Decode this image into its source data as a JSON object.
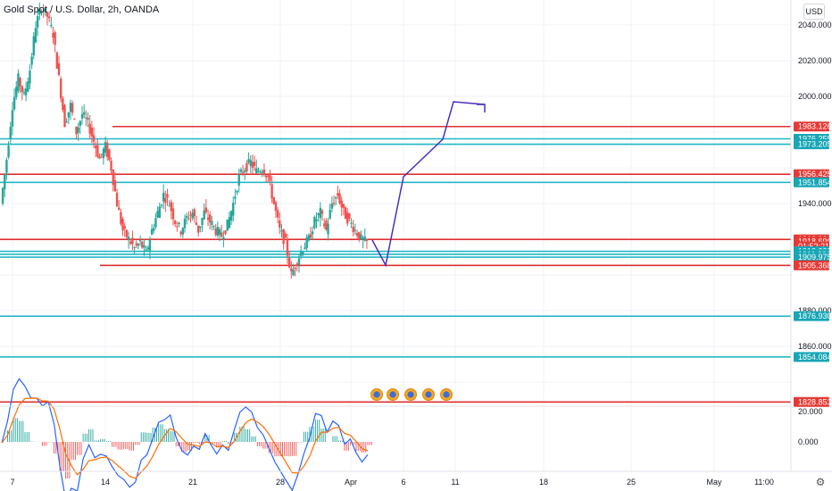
{
  "header": {
    "title": "Gold Spot / U.S. Dollar, 2h, OANDA",
    "currency": "USD"
  },
  "colors": {
    "up": "#26a69a",
    "down": "#ef5350",
    "red_line": "#e03030",
    "cyan_line": "#21b7c6",
    "projection": "#4a2fbf",
    "macd_line": "#2962ff",
    "signal_line": "#ff6d00",
    "price_label_red": "#e53935",
    "price_label_cyan": "#17a6b6"
  },
  "price_axis": {
    "ticks": [
      {
        "label": "2040.000",
        "value": 2040
      },
      {
        "label": "2020.000",
        "value": 2020
      },
      {
        "label": "2000.000",
        "value": 2000
      },
      {
        "label": "1940.000",
        "value": 1940
      },
      {
        "label": "1880.000",
        "value": 1880
      },
      {
        "label": "1860.000",
        "value": 1860
      }
    ],
    "tags": [
      {
        "label": "1983.126",
        "value": 1983.126,
        "color": "red"
      },
      {
        "label": "1976.255",
        "value": 1976.255,
        "color": "cyan"
      },
      {
        "label": "1973.205",
        "value": 1973.205,
        "color": "cyan"
      },
      {
        "label": "1956.425",
        "value": 1956.425,
        "color": "red"
      },
      {
        "label": "1951.854",
        "value": 1951.854,
        "color": "cyan"
      },
      {
        "label": "1919.920",
        "value": 1919.92,
        "color": "red"
      },
      {
        "label": "1918.690",
        "value": 1918.69,
        "color": "red"
      },
      {
        "label": "01:52:21",
        "value": 1916.0,
        "color": "red"
      },
      {
        "label": "1913.238",
        "value": 1913.238,
        "color": "cyan"
      },
      {
        "label": "1911.606",
        "value": 1911.606,
        "color": "cyan"
      },
      {
        "label": "1909.975",
        "value": 1909.975,
        "color": "cyan"
      },
      {
        "label": "1905.368",
        "value": 1905.368,
        "color": "red"
      },
      {
        "label": "1876.930",
        "value": 1876.93,
        "color": "cyan"
      },
      {
        "label": "1854.084",
        "value": 1854.084,
        "color": "cyan"
      },
      {
        "label": "1828.853",
        "value": 1828.853,
        "color": "red"
      }
    ]
  },
  "macd_axis": {
    "ticks": [
      {
        "label": "20.000",
        "value": 20
      },
      {
        "label": "0.000",
        "value": 0
      }
    ]
  },
  "time_axis": {
    "labels": [
      "7",
      "14",
      "21",
      "28",
      "Apr",
      "6",
      "11",
      "18",
      "25",
      "May",
      "11:00"
    ]
  },
  "chart_data": {
    "type": "candlestick",
    "symbol": "Gold Spot / U.S. Dollar",
    "interval": "2h",
    "source": "OANDA",
    "price_range": [
      1820,
      2050
    ],
    "horizontal_levels": [
      {
        "value": 1983.126,
        "color": "red"
      },
      {
        "value": 1976.255,
        "color": "cyan"
      },
      {
        "value": 1973.205,
        "color": "cyan"
      },
      {
        "value": 1956.425,
        "color": "red"
      },
      {
        "value": 1951.854,
        "color": "cyan"
      },
      {
        "value": 1919.92,
        "color": "red"
      },
      {
        "value": 1913.238,
        "color": "cyan"
      },
      {
        "value": 1911.606,
        "color": "cyan"
      },
      {
        "value": 1909.975,
        "color": "cyan"
      },
      {
        "value": 1905.368,
        "color": "red"
      },
      {
        "value": 1876.93,
        "color": "cyan"
      },
      {
        "value": 1854.084,
        "color": "cyan"
      },
      {
        "value": 1828.853,
        "color": "red"
      }
    ],
    "price_path": [
      1940,
      1965,
      1995,
      2010,
      2000,
      2015,
      2040,
      2050,
      2045,
      2035,
      2010,
      1985,
      1995,
      1980,
      1990,
      1985,
      1975,
      1965,
      1972,
      1960,
      1940,
      1925,
      1920,
      1915,
      1918,
      1912,
      1925,
      1935,
      1945,
      1940,
      1930,
      1925,
      1932,
      1935,
      1925,
      1935,
      1930,
      1925,
      1922,
      1928,
      1940,
      1955,
      1960,
      1963,
      1958,
      1960,
      1955,
      1940,
      1925,
      1918,
      1900,
      1908,
      1915,
      1920,
      1930,
      1935,
      1925,
      1940,
      1945,
      1935,
      1930,
      1925,
      1920,
      1918
    ],
    "projection_path": [
      {
        "day": "Apr",
        "price": 1919.5
      },
      {
        "day": "6",
        "price": 1905.5
      },
      {
        "day": "",
        "price": 1955
      },
      {
        "day": "11",
        "price": 1976
      },
      {
        "day": "",
        "price": 1997
      }
    ]
  }
}
